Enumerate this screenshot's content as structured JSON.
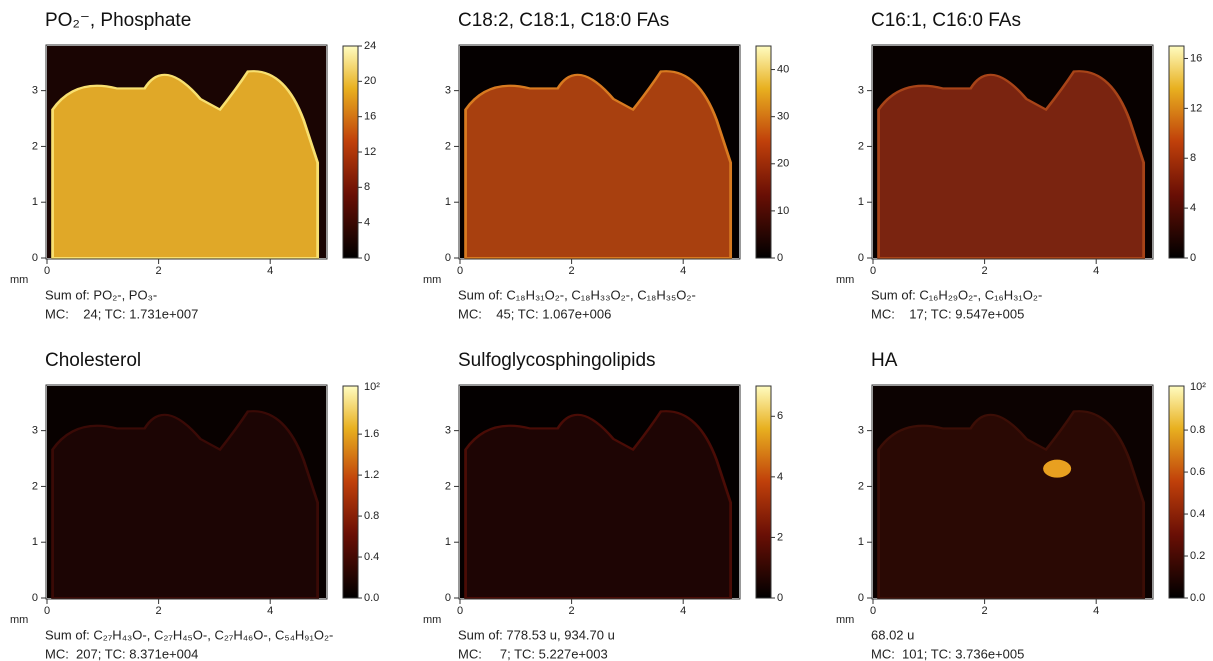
{
  "panels": [
    {
      "title": "PO₂⁻, Phosphate",
      "x_unit": "mm",
      "xlim": [
        0,
        5
      ],
      "xticks": [
        0,
        2,
        4
      ],
      "ylim": [
        0,
        3.8
      ],
      "yticks": [
        0,
        1,
        2,
        3
      ],
      "colorbar": {
        "lim": [
          0,
          24
        ],
        "ticks": [
          0,
          4,
          8,
          12,
          16,
          20,
          24
        ]
      },
      "caption": [
        "Sum of: PO₂-, PO₃-",
        "MC:    24; TC: 1.731e+007"
      ]
    },
    {
      "title": "C18:2, C18:1, C18:0 FAs",
      "x_unit": "mm",
      "xlim": [
        0,
        5
      ],
      "xticks": [
        0,
        2,
        4
      ],
      "ylim": [
        0,
        3.8
      ],
      "yticks": [
        0,
        1,
        2,
        3
      ],
      "colorbar": {
        "lim": [
          0,
          45
        ],
        "ticks": [
          0,
          10,
          20,
          30,
          40
        ]
      },
      "caption": [
        "Sum of: C₁₈H₃₁O₂-, C₁₈H₃₃O₂-, C₁₈H₃₅O₂-",
        "MC:    45; TC: 1.067e+006"
      ]
    },
    {
      "title": "C16:1, C16:0 FAs",
      "x_unit": "mm",
      "xlim": [
        0,
        5
      ],
      "xticks": [
        0,
        2,
        4
      ],
      "ylim": [
        0,
        3.8
      ],
      "yticks": [
        0,
        1,
        2,
        3
      ],
      "colorbar": {
        "lim": [
          0,
          17
        ],
        "ticks": [
          0,
          4,
          8,
          12,
          16
        ]
      },
      "caption": [
        "Sum of: C₁₆H₂₉O₂-, C₁₆H₃₁O₂-",
        "MC:    17; TC: 9.547e+005"
      ]
    },
    {
      "title": "Cholesterol",
      "x_unit": "mm",
      "xlim": [
        0,
        5
      ],
      "xticks": [
        0,
        2,
        4
      ],
      "ylim": [
        0,
        3.8
      ],
      "yticks": [
        0,
        1,
        2,
        3
      ],
      "colorbar": {
        "lim": [
          0,
          2.07
        ],
        "scale_label": "10²",
        "ticks": [
          {
            "value": 0,
            "label": "0.0"
          },
          {
            "value": 0.4,
            "label": "0.4"
          },
          {
            "value": 0.8,
            "label": "0.8"
          },
          {
            "value": 1.2,
            "label": "1.2"
          },
          {
            "value": 1.6,
            "label": "1.6"
          }
        ]
      },
      "caption": [
        "Sum of: C₂₇H₄₃O-, C₂₇H₄₅O-, C₂₇H₄₆O-, C₅₄H₉₁O₂-",
        "MC:  207; TC: 8.371e+004"
      ]
    },
    {
      "title": "Sulfoglycosphingolipids",
      "x_unit": "mm",
      "xlim": [
        0,
        5
      ],
      "xticks": [
        0,
        2,
        4
      ],
      "ylim": [
        0,
        3.8
      ],
      "yticks": [
        0,
        1,
        2,
        3
      ],
      "colorbar": {
        "lim": [
          0,
          7
        ],
        "ticks": [
          0,
          2,
          4,
          6
        ]
      },
      "caption": [
        "Sum of: 778.53 u, 934.70 u",
        "MC:     7; TC: 5.227e+003"
      ]
    },
    {
      "title": "HA",
      "x_unit": "mm",
      "xlim": [
        0,
        5
      ],
      "xticks": [
        0,
        2,
        4
      ],
      "ylim": [
        0,
        3.8
      ],
      "yticks": [
        0,
        1,
        2,
        3
      ],
      "colorbar": {
        "lim": [
          0,
          1.01
        ],
        "scale_label": "10²",
        "ticks": [
          {
            "value": 0,
            "label": "0.0"
          },
          {
            "value": 0.2,
            "label": "0.2"
          },
          {
            "value": 0.4,
            "label": "0.4"
          },
          {
            "value": 0.6,
            "label": "0.6"
          },
          {
            "value": 0.8,
            "label": "0.8"
          }
        ]
      },
      "caption": [
        "68.02 u",
        "MC:  101; TC: 3.736e+005"
      ]
    }
  ]
}
